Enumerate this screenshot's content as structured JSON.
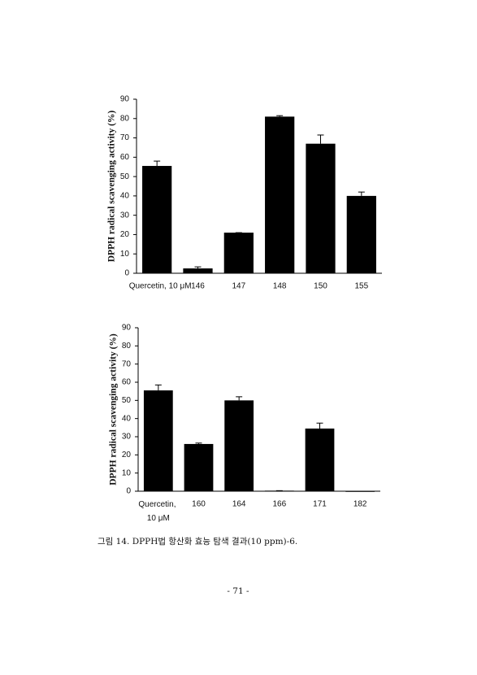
{
  "chart_data": [
    {
      "type": "bar",
      "ylabel": "DPPH radical scavenging activity (%)",
      "categories": [
        "Quercetin, 10 μM",
        "146",
        "147",
        "148",
        "150",
        "155"
      ],
      "values": [
        55.5,
        2.5,
        21,
        81,
        67,
        40
      ],
      "errors": [
        2.5,
        0.8,
        0,
        0.5,
        4.5,
        2
      ],
      "color": "#000000",
      "ylim": [
        0,
        90
      ],
      "yticks": [
        0,
        10,
        20,
        30,
        40,
        50,
        60,
        70,
        80,
        90
      ]
    },
    {
      "type": "bar",
      "ylabel": "DPPH radical scavenging activity (%)",
      "categories": [
        "Quercetin, 10 μM",
        "160",
        "164",
        "166",
        "171",
        "182"
      ],
      "values": [
        55.5,
        26,
        50,
        0.3,
        34.5,
        0
      ],
      "errors": [
        3,
        0.5,
        2,
        0,
        3,
        0
      ],
      "color": "#000000",
      "ylim": [
        0,
        90
      ],
      "yticks": [
        0,
        10,
        20,
        30,
        40,
        50,
        60,
        70,
        80,
        90
      ]
    }
  ],
  "caption": "그림 14. DPPH법 항산화 효능 탐색 결과(10 ppm)-6.",
  "page_number": "- 71 -"
}
